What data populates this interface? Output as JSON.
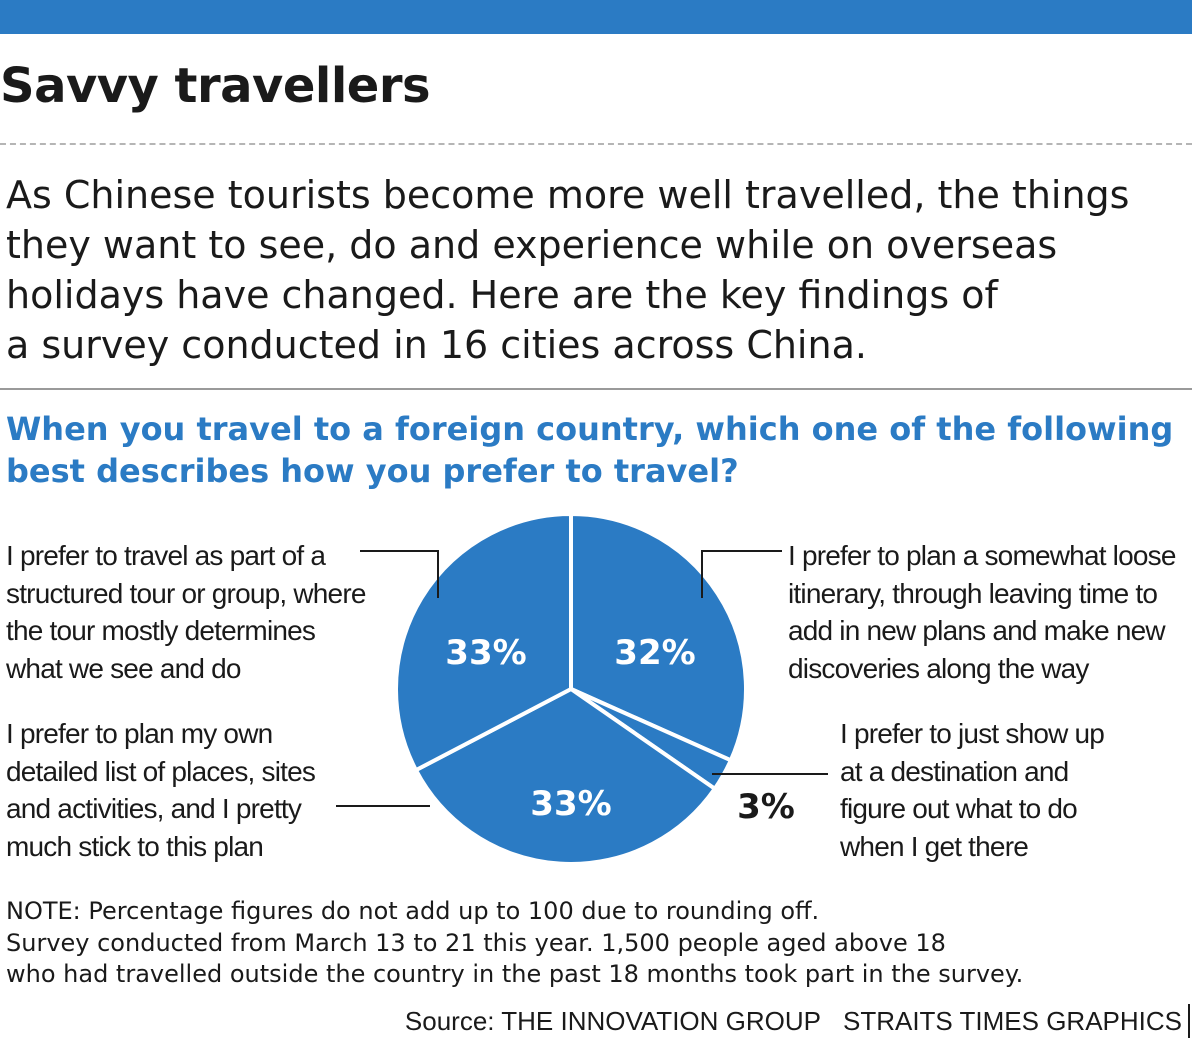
{
  "header": {
    "title": "Savvy travellers",
    "intro": [
      "As Chinese tourists become more well travelled, the things",
      "they want to see, do and experience while on overseas",
      "holidays have changed. Here are the key findings of",
      "a survey conducted in 16 cities across China."
    ],
    "question": [
      "When you travel to a foreign country, which one of the following",
      "best describes how you prefer to travel?"
    ]
  },
  "colors": {
    "accent": "#2b7bc4",
    "pie": "#2b7bc4",
    "text": "#1a1a1a"
  },
  "chart_data": {
    "type": "pie",
    "title": "When you travel to a foreign country, which one of the following best describes how you prefer to travel?",
    "slices": [
      {
        "key": "loose",
        "value": 32,
        "label": "32%",
        "description": [
          "I prefer to plan a somewhat loose",
          "itinerary, through leaving time to",
          "add in new plans and make new",
          "discoveries along the way"
        ]
      },
      {
        "key": "showup",
        "value": 3,
        "label": "3%",
        "description": [
          "I prefer to just show up",
          "at a destination and",
          "figure out what to do",
          "when I get there"
        ]
      },
      {
        "key": "own",
        "value": 33,
        "label": "33%",
        "description": [
          "I prefer to plan my own",
          "detailed list of places, sites",
          "and activities, and I pretty",
          "much stick to this plan"
        ]
      },
      {
        "key": "tour",
        "value": 33,
        "label": "33%",
        "description": [
          "I prefer to travel as part of a",
          "structured tour or group, where",
          "the tour mostly determines",
          "what we see and do"
        ]
      }
    ]
  },
  "footer": {
    "note": [
      "NOTE: Percentage figures do not add up to 100 due to rounding off.",
      "Survey conducted from March 13 to 21 this year. 1,500 people aged above 18",
      "who had travelled outside the country in the past 18 months took part in the survey."
    ],
    "source": "Source: THE INNOVATION GROUP",
    "credit": "STRAITS TIMES GRAPHICS"
  }
}
